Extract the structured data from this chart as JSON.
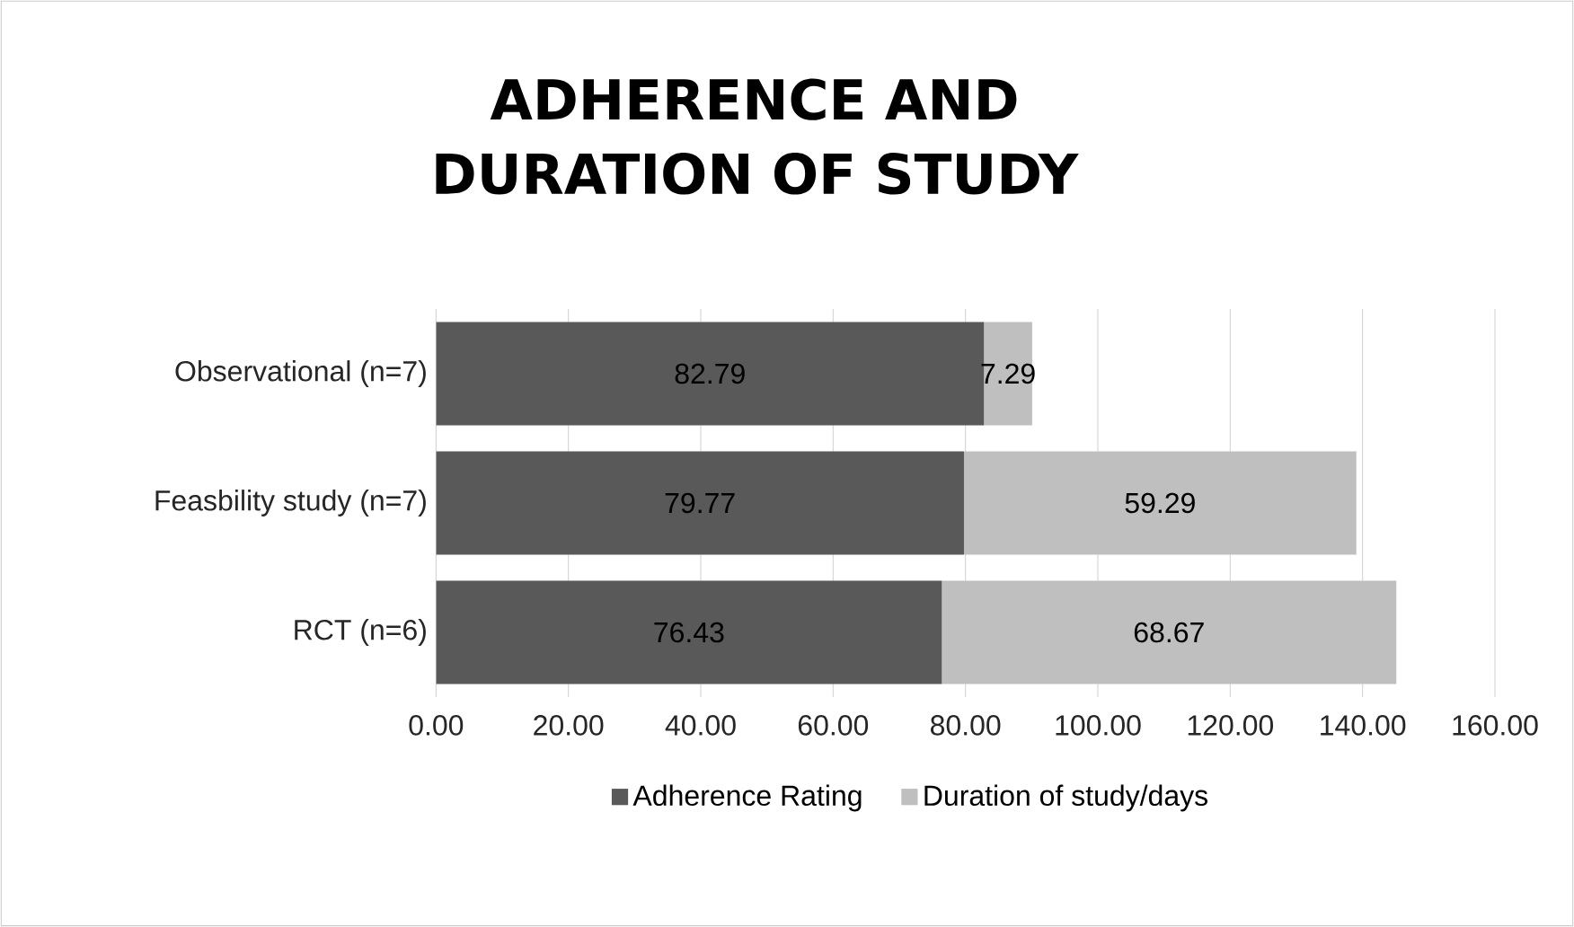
{
  "chart_data": {
    "type": "bar",
    "orientation": "horizontal",
    "stacked": true,
    "title": "ADHERENCE AND DURATION OF STUDY",
    "categories": [
      "Observational (n=7)",
      "Feasbility study (n=7)",
      "RCT (n=6)"
    ],
    "series": [
      {
        "name": "Adherence Rating",
        "color": "#595959",
        "values": [
          82.79,
          79.77,
          76.43
        ]
      },
      {
        "name": "Duration of study/days",
        "color": "#bfbfbf",
        "values": [
          7.29,
          59.29,
          68.67
        ]
      }
    ],
    "xlim": [
      0,
      160
    ],
    "xticks": [
      {
        "value": 0,
        "label": "0.00"
      },
      {
        "value": 20,
        "label": "20.00"
      },
      {
        "value": 40,
        "label": "40.00"
      },
      {
        "value": 60,
        "label": "60.00"
      },
      {
        "value": 80,
        "label": "80.00"
      },
      {
        "value": 100,
        "label": "100.00"
      },
      {
        "value": 120,
        "label": "120.00"
      },
      {
        "value": 140,
        "label": "140.00"
      },
      {
        "value": 160,
        "label": "160.00"
      }
    ],
    "grid": "x",
    "legend": "bottom",
    "data_labels": true
  }
}
